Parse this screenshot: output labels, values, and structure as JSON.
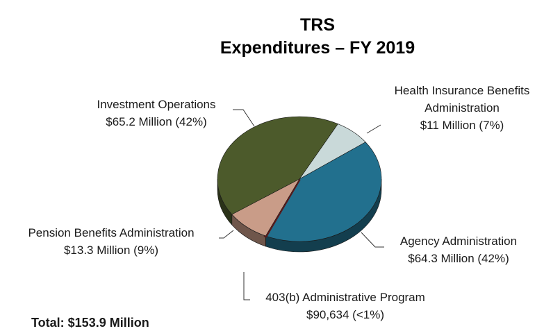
{
  "chart_data": {
    "type": "pie",
    "title": "TRS",
    "subtitle": "Expenditures – FY 2019",
    "categories": [
      "Health Insurance Benefits Administration",
      "Agency Administration",
      "403(b) Administrative Program",
      "Pension Benefits Administration",
      "Investment Operations"
    ],
    "values": [
      11,
      64.3,
      0.090634,
      13.3,
      65.2
    ],
    "value_labels": [
      "$11 Million (7%)",
      "$64.3 Million (42%)",
      "$90,634 (<1%)",
      "$13.3 Million (9%)",
      "$65.2 Million (42%)"
    ],
    "colors": [
      "#c9d9d9",
      "#22708e",
      "#5b1a1a",
      "#c99c88",
      "#4c5a2b"
    ],
    "annotation": "Total: $153.9 Million"
  }
}
